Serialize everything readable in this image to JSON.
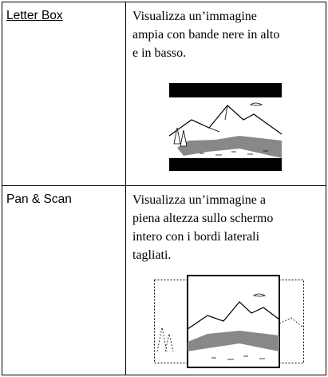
{
  "table": {
    "rows": [
      {
        "label": "Letter Box",
        "description": [
          "Visualizza un’immagine",
          "ampia con bande nere in alto",
          "e in basso."
        ]
      },
      {
        "label": "Pan & Scan",
        "description": [
          "Visualizza un’immagine a",
          "piena altezza sullo schermo",
          "intero con i bordi laterali",
          "tagliati."
        ]
      }
    ]
  }
}
